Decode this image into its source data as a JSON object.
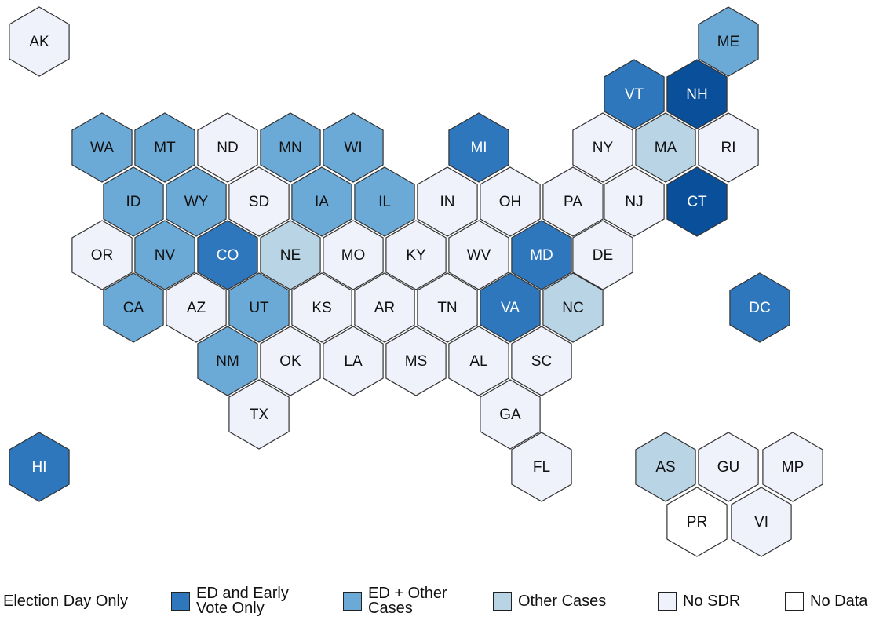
{
  "map": {
    "states": [
      {
        "code": "AK",
        "color": "#eff1fb"
      },
      {
        "code": "ME",
        "color": "#6baad6"
      },
      {
        "code": "VT",
        "color": "#2f77bd"
      },
      {
        "code": "NH",
        "color": "#0a4f9a"
      },
      {
        "code": "WA",
        "color": "#6baad6"
      },
      {
        "code": "MT",
        "color": "#6baad6"
      },
      {
        "code": "ND",
        "color": "#eff1fb"
      },
      {
        "code": "MN",
        "color": "#6baad6"
      },
      {
        "code": "WI",
        "color": "#6baad6"
      },
      {
        "code": "MI",
        "color": "#2f77bd"
      },
      {
        "code": "NY",
        "color": "#eff1fb"
      },
      {
        "code": "MA",
        "color": "#b9d4e4"
      },
      {
        "code": "RI",
        "color": "#eff1fb"
      },
      {
        "code": "ID",
        "color": "#6baad6"
      },
      {
        "code": "WY",
        "color": "#6baad6"
      },
      {
        "code": "SD",
        "color": "#eff1fb"
      },
      {
        "code": "IA",
        "color": "#6baad6"
      },
      {
        "code": "IL",
        "color": "#6baad6"
      },
      {
        "code": "IN",
        "color": "#eff1fb"
      },
      {
        "code": "OH",
        "color": "#eff1fb"
      },
      {
        "code": "PA",
        "color": "#eff1fb"
      },
      {
        "code": "NJ",
        "color": "#eff1fb"
      },
      {
        "code": "CT",
        "color": "#0a4f9a"
      },
      {
        "code": "OR",
        "color": "#eff1fb"
      },
      {
        "code": "NV",
        "color": "#6baad6"
      },
      {
        "code": "CO",
        "color": "#2f77bd"
      },
      {
        "code": "NE",
        "color": "#b9d4e4"
      },
      {
        "code": "MO",
        "color": "#eff1fb"
      },
      {
        "code": "KY",
        "color": "#eff1fb"
      },
      {
        "code": "WV",
        "color": "#eff1fb"
      },
      {
        "code": "MD",
        "color": "#2f77bd"
      },
      {
        "code": "DE",
        "color": "#eff1fb"
      },
      {
        "code": "CA",
        "color": "#6baad6"
      },
      {
        "code": "AZ",
        "color": "#eff1fb"
      },
      {
        "code": "UT",
        "color": "#6baad6"
      },
      {
        "code": "KS",
        "color": "#eff1fb"
      },
      {
        "code": "AR",
        "color": "#eff1fb"
      },
      {
        "code": "TN",
        "color": "#eff1fb"
      },
      {
        "code": "VA",
        "color": "#2f77bd"
      },
      {
        "code": "NC",
        "color": "#b9d4e4"
      },
      {
        "code": "DC",
        "color": "#2f77bd"
      },
      {
        "code": "NM",
        "color": "#6baad6"
      },
      {
        "code": "OK",
        "color": "#eff1fb"
      },
      {
        "code": "LA",
        "color": "#eff1fb"
      },
      {
        "code": "MS",
        "color": "#eff1fb"
      },
      {
        "code": "AL",
        "color": "#eff1fb"
      },
      {
        "code": "SC",
        "color": "#eff1fb"
      },
      {
        "code": "TX",
        "color": "#eff1fb"
      },
      {
        "code": "GA",
        "color": "#eff1fb"
      },
      {
        "code": "HI",
        "color": "#2f77bd"
      },
      {
        "code": "FL",
        "color": "#eff1fb"
      },
      {
        "code": "AS",
        "color": "#b9d4e4"
      },
      {
        "code": "GU",
        "color": "#eff1fb"
      },
      {
        "code": "MP",
        "color": "#eff1fb"
      },
      {
        "code": "PR",
        "color": "#ffffff"
      },
      {
        "code": "VI",
        "color": "#eff1fb"
      }
    ],
    "legend": [
      {
        "label": "Election Day Only",
        "color": "#0a4f9a"
      },
      {
        "label": "ED and Early Vote Only",
        "color": "#2f77bd"
      },
      {
        "label": "ED + Other Cases",
        "color": "#6baad6"
      },
      {
        "label": "Other Cases",
        "color": "#b9d4e4"
      },
      {
        "label": "No SDR",
        "color": "#eff1fb"
      },
      {
        "label": "No Data",
        "color": "#ffffff"
      }
    ]
  }
}
